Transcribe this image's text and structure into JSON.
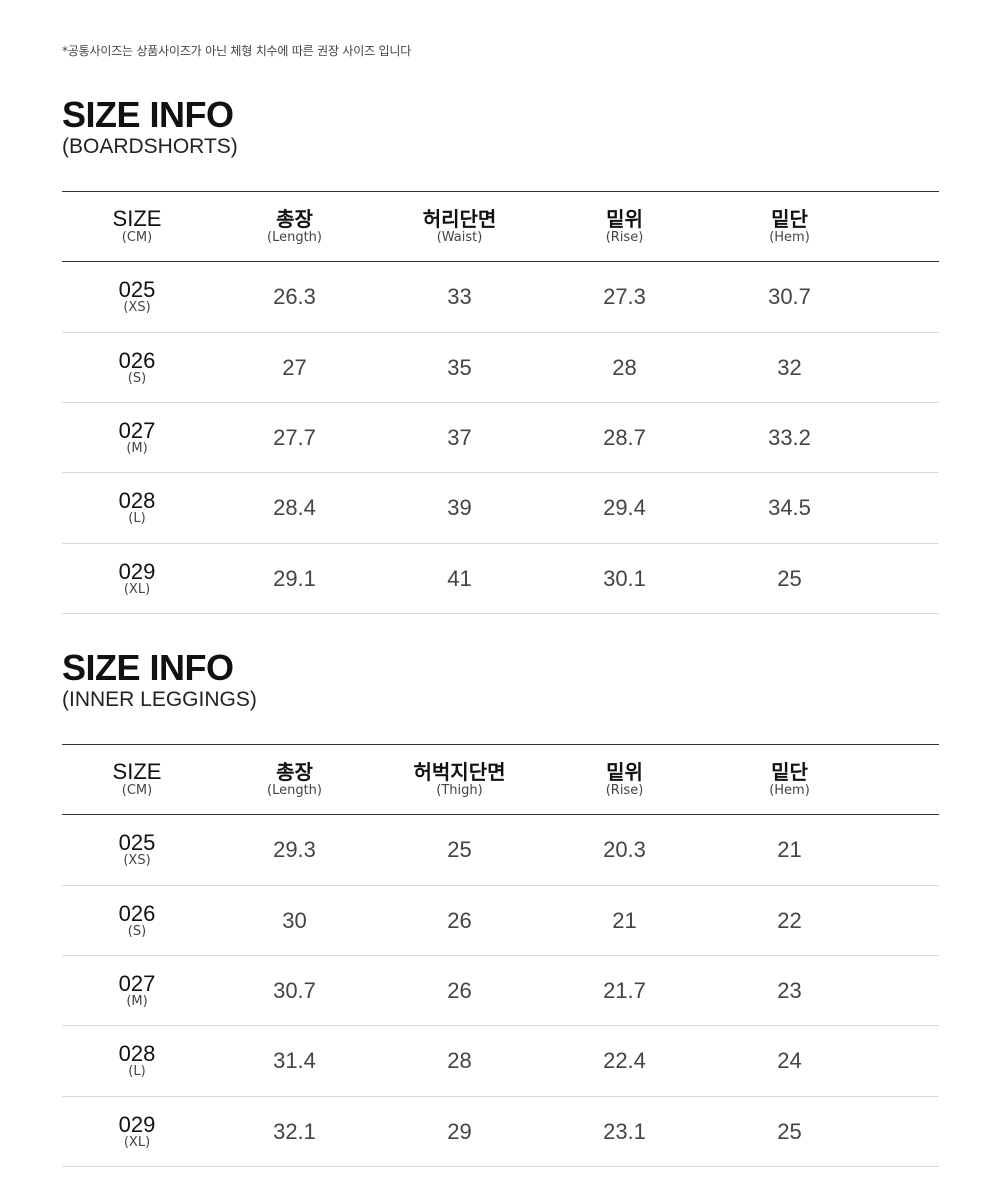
{
  "notice": "*공통사이즈는 상품사이즈가 아닌 체형 치수에 따른 권장 사이즈 입니다",
  "sections": [
    {
      "title": "SIZE INFO",
      "subtitle": "(BOARDSHORTS)",
      "headers": [
        {
          "main": "SIZE",
          "sub": "(CM)"
        },
        {
          "main": "총장",
          "sub": "(Length)"
        },
        {
          "main": "허리단면",
          "sub": "(Waist)"
        },
        {
          "main": "밑위",
          "sub": "(Rise)"
        },
        {
          "main": "밑단",
          "sub": "(Hem)"
        }
      ],
      "rows": [
        {
          "size": "025",
          "label": "(XS)",
          "values": [
            "26.3",
            "33",
            "27.3",
            "30.7"
          ]
        },
        {
          "size": "026",
          "label": "(S)",
          "values": [
            "27",
            "35",
            "28",
            "32"
          ]
        },
        {
          "size": "027",
          "label": "(M)",
          "values": [
            "27.7",
            "37",
            "28.7",
            "33.2"
          ]
        },
        {
          "size": "028",
          "label": "(L)",
          "values": [
            "28.4",
            "39",
            "29.4",
            "34.5"
          ]
        },
        {
          "size": "029",
          "label": "(XL)",
          "values": [
            "29.1",
            "41",
            "30.1",
            "25"
          ]
        }
      ]
    },
    {
      "title": "SIZE INFO",
      "subtitle": "(INNER LEGGINGS)",
      "headers": [
        {
          "main": "SIZE",
          "sub": "(CM)"
        },
        {
          "main": "총장",
          "sub": "(Length)"
        },
        {
          "main": "허벅지단면",
          "sub": "(Thigh)"
        },
        {
          "main": "밑위",
          "sub": "(Rise)"
        },
        {
          "main": "밑단",
          "sub": "(Hem)"
        }
      ],
      "rows": [
        {
          "size": "025",
          "label": "(XS)",
          "values": [
            "29.3",
            "25",
            "20.3",
            "21"
          ]
        },
        {
          "size": "026",
          "label": "(S)",
          "values": [
            "30",
            "26",
            "21",
            "22"
          ]
        },
        {
          "size": "027",
          "label": "(M)",
          "values": [
            "30.7",
            "26",
            "21.7",
            "23"
          ]
        },
        {
          "size": "028",
          "label": "(L)",
          "values": [
            "31.4",
            "28",
            "22.4",
            "24"
          ]
        },
        {
          "size": "029",
          "label": "(XL)",
          "values": [
            "32.1",
            "29",
            "23.1",
            "25"
          ]
        }
      ]
    }
  ]
}
